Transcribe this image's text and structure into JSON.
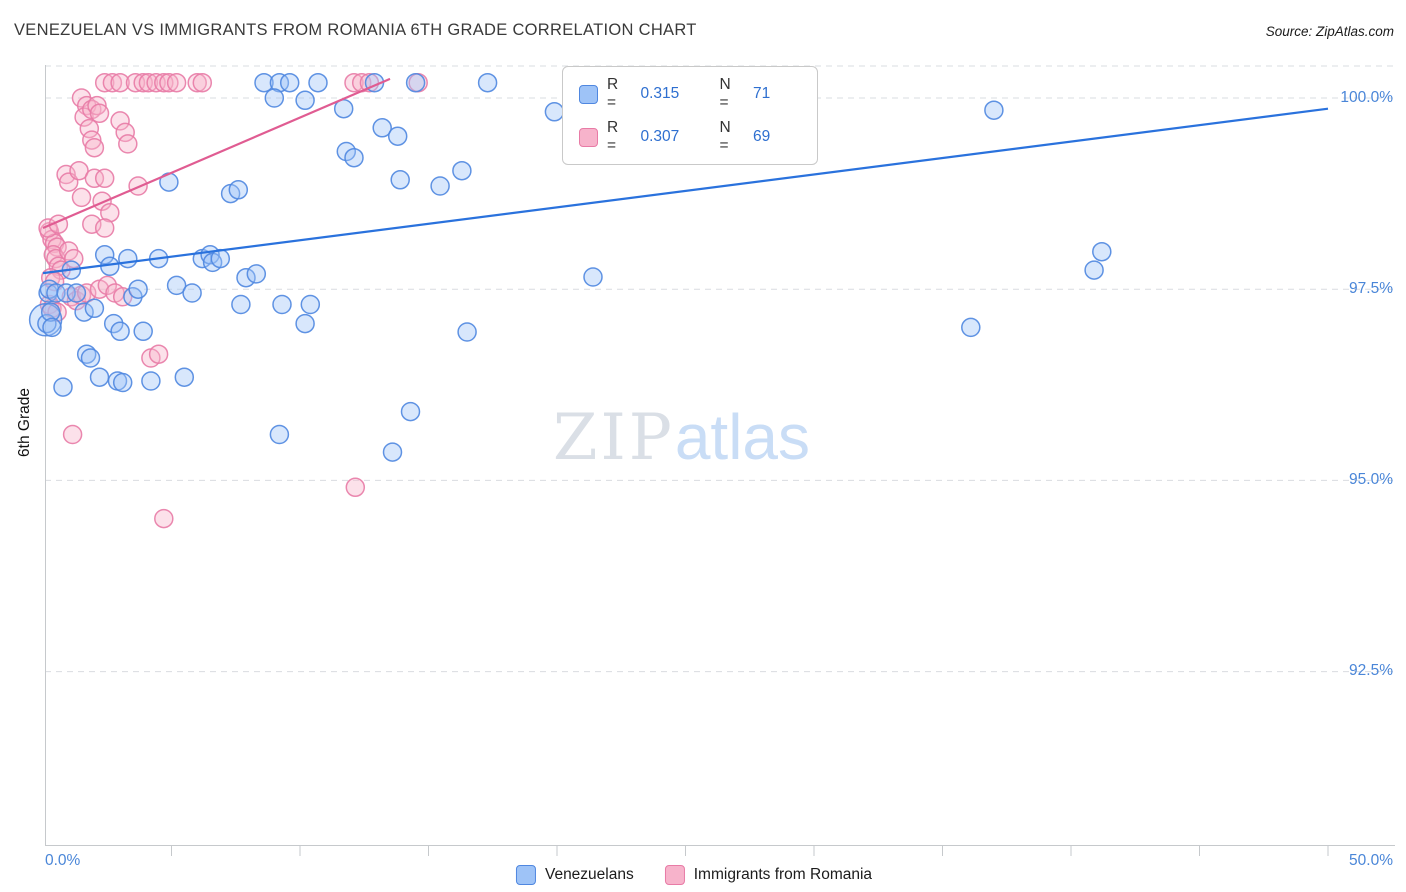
{
  "header": {
    "title": "VENEZUELAN VS IMMIGRANTS FROM ROMANIA 6TH GRADE CORRELATION CHART",
    "source": "Source: ZipAtlas.com"
  },
  "axes": {
    "y_label": "6th Grade",
    "y_ticks": [
      "100.0%",
      "97.5%",
      "95.0%",
      "92.5%"
    ],
    "x_left_label": "0.0%",
    "x_right_label": "50.0%"
  },
  "stats": {
    "rows": [
      {
        "r_label": "R =",
        "r_value": "0.315",
        "n_label": "N =",
        "n_value": "71"
      },
      {
        "r_label": "R =",
        "r_value": "0.307",
        "n_label": "N =",
        "n_value": "69"
      }
    ]
  },
  "bottom_legend": {
    "items": [
      {
        "label": "Venezuelans"
      },
      {
        "label": "Immigrants from Romania"
      }
    ]
  },
  "watermark": {
    "part1": "ZIP",
    "part2": "atlas"
  },
  "colors": {
    "tick_label_blue": "#4a86d8",
    "stat_value_blue": "#2e6fd0",
    "blue_stroke": "#4f87e0",
    "blue_fill": "#9ec3f7",
    "blue_trend": "#2a72dd",
    "pink_stroke": "#e87ba6",
    "pink_fill": "#f7b3cb",
    "pink_trend": "#e05c92"
  },
  "chart_data": {
    "type": "scatter",
    "title": "VENEZUELAN VS IMMIGRANTS FROM ROMANIA 6TH GRADE CORRELATION CHART",
    "xlabel": "",
    "ylabel": "6th Grade",
    "xlim": [
      0,
      50
    ],
    "ylim": [
      90.2,
      100.45
    ],
    "x_tick_step_pct": 5,
    "y_gridlines_pct": [
      100.0,
      97.5,
      95.0,
      92.5
    ],
    "legend_position": "top-center",
    "series": [
      {
        "name": "Venezuelans",
        "R": 0.315,
        "N": 71,
        "stroke": "#4f87e0",
        "fill": "#9ec3f7",
        "trend_color": "#2a72dd",
        "trend": {
          "x": [
            0,
            50
          ],
          "y": [
            97.71,
            99.86
          ]
        },
        "points": [
          [
            0.1,
            97.1,
            16
          ],
          [
            0.15,
            97.05
          ],
          [
            0.2,
            97.45
          ],
          [
            0.25,
            97.5
          ],
          [
            0.3,
            97.2
          ],
          [
            0.35,
            97.0
          ],
          [
            0.5,
            97.45
          ],
          [
            0.78,
            96.22
          ],
          [
            0.9,
            97.45
          ],
          [
            1.1,
            97.75
          ],
          [
            1.3,
            97.45
          ],
          [
            1.6,
            97.2
          ],
          [
            1.7,
            96.65
          ],
          [
            1.85,
            96.6
          ],
          [
            2.0,
            97.25
          ],
          [
            2.2,
            96.35
          ],
          [
            2.4,
            97.95
          ],
          [
            2.6,
            97.8
          ],
          [
            2.75,
            97.05
          ],
          [
            2.9,
            96.3
          ],
          [
            3.0,
            96.95
          ],
          [
            3.1,
            96.28
          ],
          [
            3.3,
            97.9
          ],
          [
            3.5,
            97.4
          ],
          [
            3.7,
            97.5
          ],
          [
            3.9,
            96.95
          ],
          [
            4.2,
            96.3
          ],
          [
            4.5,
            97.9
          ],
          [
            4.9,
            98.9
          ],
          [
            5.2,
            97.55
          ],
          [
            5.5,
            96.35
          ],
          [
            5.8,
            97.45
          ],
          [
            6.2,
            97.9
          ],
          [
            6.5,
            97.95
          ],
          [
            6.6,
            97.85
          ],
          [
            6.9,
            97.9
          ],
          [
            7.3,
            98.75
          ],
          [
            7.6,
            98.8
          ],
          [
            7.9,
            97.65
          ],
          [
            8.3,
            97.7
          ],
          [
            7.7,
            97.3
          ],
          [
            9.2,
            95.6
          ],
          [
            9.3,
            97.3
          ],
          [
            10.2,
            97.05
          ],
          [
            10.4,
            97.3
          ],
          [
            13.6,
            95.37
          ],
          [
            14.3,
            95.9
          ],
          [
            8.6,
            100.2
          ],
          [
            9.2,
            100.2
          ],
          [
            9.6,
            100.2
          ],
          [
            10.7,
            100.2
          ],
          [
            12.9,
            100.2
          ],
          [
            14.5,
            100.2
          ],
          [
            17.3,
            100.2
          ],
          [
            9.0,
            100.0
          ],
          [
            10.2,
            99.97
          ],
          [
            11.7,
            99.86
          ],
          [
            11.8,
            99.3
          ],
          [
            12.1,
            99.22
          ],
          [
            13.2,
            99.61
          ],
          [
            13.8,
            99.5
          ],
          [
            13.9,
            98.93
          ],
          [
            15.45,
            98.85
          ],
          [
            16.3,
            99.05
          ],
          [
            16.5,
            96.94
          ],
          [
            19.9,
            99.82
          ],
          [
            21.4,
            97.66
          ],
          [
            36.1,
            97.0
          ],
          [
            37.0,
            99.84
          ],
          [
            40.9,
            97.75
          ],
          [
            41.2,
            97.99
          ]
        ]
      },
      {
        "name": "Immigrants from Romania",
        "R": 0.307,
        "N": 69,
        "stroke": "#e87ba6",
        "fill": "#f7b3cb",
        "trend_color": "#e05c92",
        "trend": {
          "x": [
            0,
            13.5
          ],
          "y": [
            98.3,
            100.25
          ]
        },
        "points": [
          [
            2.4,
            100.2
          ],
          [
            2.7,
            100.2
          ],
          [
            3.0,
            100.2
          ],
          [
            3.6,
            100.2
          ],
          [
            3.9,
            100.2
          ],
          [
            4.1,
            100.2
          ],
          [
            4.4,
            100.2
          ],
          [
            4.7,
            100.2
          ],
          [
            4.9,
            100.2
          ],
          [
            5.2,
            100.2
          ],
          [
            6.0,
            100.2
          ],
          [
            6.2,
            100.2
          ],
          [
            12.1,
            100.2
          ],
          [
            12.4,
            100.2
          ],
          [
            12.7,
            100.2
          ],
          [
            14.6,
            100.2
          ],
          [
            1.5,
            100.0
          ],
          [
            1.7,
            99.9
          ],
          [
            1.6,
            99.75
          ],
          [
            1.9,
            99.85
          ],
          [
            2.1,
            99.9
          ],
          [
            1.8,
            99.6
          ],
          [
            1.9,
            99.45
          ],
          [
            2.0,
            99.35
          ],
          [
            3.0,
            99.7
          ],
          [
            3.2,
            99.55
          ],
          [
            3.3,
            99.4
          ],
          [
            2.2,
            99.8
          ],
          [
            0.9,
            99.0
          ],
          [
            1.0,
            98.9
          ],
          [
            1.4,
            99.05
          ],
          [
            1.5,
            98.7
          ],
          [
            2.0,
            98.95
          ],
          [
            2.3,
            98.65
          ],
          [
            2.6,
            98.5
          ],
          [
            1.9,
            98.35
          ],
          [
            2.4,
            98.3
          ],
          [
            3.7,
            98.85
          ],
          [
            2.4,
            98.95
          ],
          [
            0.25,
            98.25
          ],
          [
            0.35,
            98.15
          ],
          [
            0.45,
            98.1
          ],
          [
            0.55,
            98.05
          ],
          [
            0.4,
            97.95
          ],
          [
            0.5,
            97.9
          ],
          [
            0.6,
            97.8
          ],
          [
            0.7,
            97.75
          ],
          [
            0.3,
            97.65
          ],
          [
            0.45,
            97.6
          ],
          [
            0.25,
            97.3
          ],
          [
            0.35,
            97.25
          ],
          [
            0.55,
            97.2
          ],
          [
            1.1,
            97.4
          ],
          [
            1.3,
            97.35
          ],
          [
            1.5,
            97.42
          ],
          [
            1.7,
            97.45
          ],
          [
            2.2,
            97.5
          ],
          [
            2.5,
            97.55
          ],
          [
            4.2,
            96.6
          ],
          [
            4.5,
            96.65
          ],
          [
            1.15,
            95.6
          ],
          [
            12.15,
            94.91
          ],
          [
            4.7,
            94.5
          ],
          [
            0.2,
            98.3
          ],
          [
            0.6,
            98.35
          ],
          [
            1.0,
            98.0
          ],
          [
            1.2,
            97.9
          ],
          [
            2.8,
            97.45
          ],
          [
            3.1,
            97.4
          ]
        ]
      }
    ]
  }
}
